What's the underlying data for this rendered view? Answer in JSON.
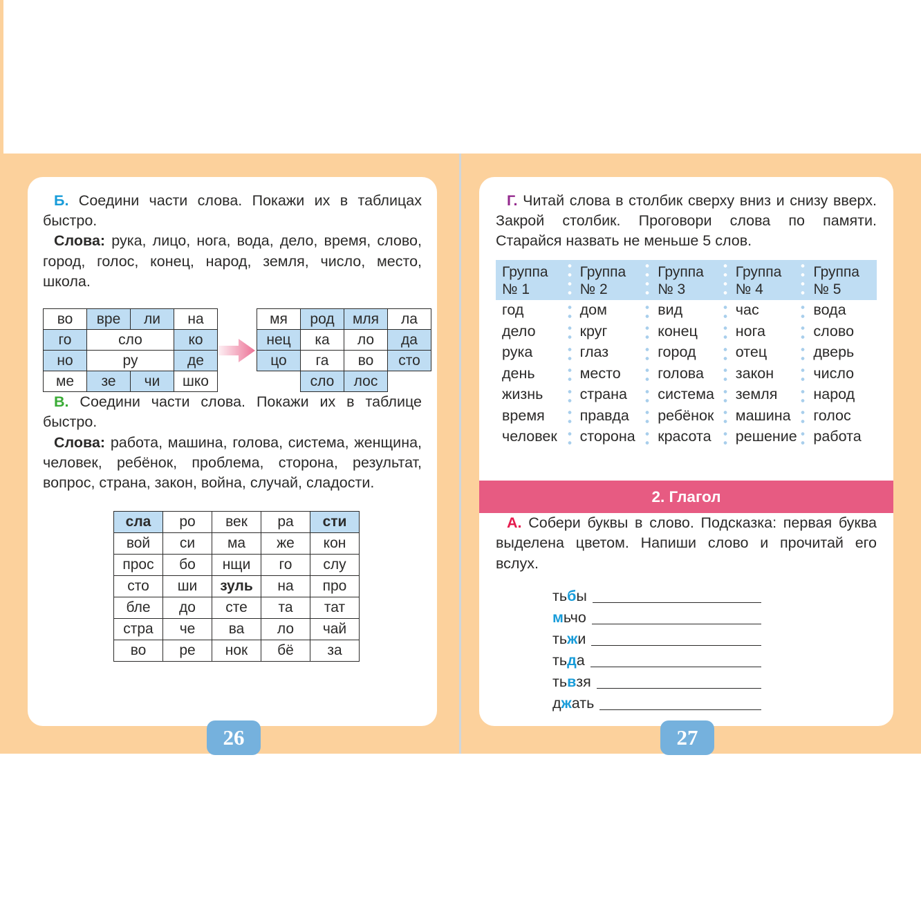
{
  "colors": {
    "background_band": "#fcd19c",
    "cell_blue": "#bfddf3",
    "banner": "#e75b82",
    "badge": "#75b1dd",
    "task_b_letter": "#189cd9",
    "task_v_letter": "#3aab36",
    "task_g_letter": "#942a8e",
    "task_a_letter": "#e51a4d",
    "blue_letter": "#189cd9",
    "text": "#2b2a29"
  },
  "left": {
    "task_b": {
      "letter": "Б.",
      "text": "Соедини части слова. Покажи их в таблицах быстро."
    },
    "words_b_label": "Слова:",
    "words_b": "рука, лицо, нога, вода, дело, время, слово, город, голос, конец, народ, земля, число, место, школа.",
    "table1": [
      [
        {
          "t": "во",
          "bg": "w"
        },
        {
          "t": "вре",
          "bg": "b"
        },
        {
          "t": "ли",
          "bg": "b"
        },
        {
          "t": "на",
          "bg": "w"
        }
      ],
      [
        {
          "t": "го",
          "bg": "b"
        },
        {
          "t": "сло",
          "bg": "w",
          "span": 2
        },
        {
          "t": "ко",
          "bg": "b"
        }
      ],
      [
        {
          "t": "но",
          "bg": "b"
        },
        {
          "t": "ру",
          "bg": "w",
          "span": 2
        },
        {
          "t": "де",
          "bg": "b"
        }
      ],
      [
        {
          "t": "ме",
          "bg": "w"
        },
        {
          "t": "зе",
          "bg": "b"
        },
        {
          "t": "чи",
          "bg": "b"
        },
        {
          "t": "шко",
          "bg": "w"
        }
      ]
    ],
    "table2": [
      [
        {
          "t": "мя",
          "bg": "w"
        },
        {
          "t": "род",
          "bg": "b"
        },
        {
          "t": "мля",
          "bg": "b"
        },
        {
          "t": "ла",
          "bg": "w"
        }
      ],
      [
        {
          "t": "нец",
          "bg": "b"
        },
        {
          "t": "ка",
          "bg": "w"
        },
        {
          "t": "ло",
          "bg": "w"
        },
        {
          "t": "да",
          "bg": "b"
        }
      ],
      [
        {
          "t": "цо",
          "bg": "b"
        },
        {
          "t": "га",
          "bg": "w"
        },
        {
          "t": "во",
          "bg": "w"
        },
        {
          "t": "сто",
          "bg": "b"
        }
      ],
      [
        {
          "t": "",
          "bg": "n"
        },
        {
          "t": "сло",
          "bg": "b"
        },
        {
          "t": "лос",
          "bg": "b"
        },
        {
          "t": "",
          "bg": "n"
        }
      ]
    ],
    "task_v": {
      "letter": "В.",
      "text": "Соедини части слова. Покажи их в таблице быстро."
    },
    "words_v_label": "Слова:",
    "words_v": "работа, машина, голова, система, женщина, человек, ребёнок, проблема, сторона, результат, вопрос, страна, закон, война, случай, сладости.",
    "table3": [
      [
        {
          "t": "сла",
          "bg": "b",
          "bold": true
        },
        {
          "t": "ро"
        },
        {
          "t": "век"
        },
        {
          "t": "ра"
        },
        {
          "t": "сти",
          "bg": "b",
          "bold": true
        }
      ],
      [
        {
          "t": "вой"
        },
        {
          "t": "си"
        },
        {
          "t": "ма"
        },
        {
          "t": "же"
        },
        {
          "t": "кон"
        }
      ],
      [
        {
          "t": "прос"
        },
        {
          "t": "бо"
        },
        {
          "t": "нщи"
        },
        {
          "t": "го"
        },
        {
          "t": "слу"
        }
      ],
      [
        {
          "t": "сто"
        },
        {
          "t": "ши"
        },
        {
          "t": "зуль",
          "bold": true
        },
        {
          "t": "на"
        },
        {
          "t": "про"
        }
      ],
      [
        {
          "t": "бле"
        },
        {
          "t": "до"
        },
        {
          "t": "сте"
        },
        {
          "t": "та"
        },
        {
          "t": "тат"
        }
      ],
      [
        {
          "t": "стра"
        },
        {
          "t": "че"
        },
        {
          "t": "ва"
        },
        {
          "t": "ло"
        },
        {
          "t": "чай"
        }
      ],
      [
        {
          "t": "во"
        },
        {
          "t": "ре"
        },
        {
          "t": "нок"
        },
        {
          "t": "бё"
        },
        {
          "t": "за"
        }
      ]
    ],
    "page_number": "26"
  },
  "right": {
    "task_g": {
      "letter": "Г.",
      "text": "Читай слова в столбик сверху вниз и снизу вверх. Закрой столбик. Проговори слова по памяти. Старайся назвать не меньше 5 слов."
    },
    "group_table": {
      "headers": [
        {
          "top": "Группа",
          "bottom": "№ 1"
        },
        {
          "top": "Группа",
          "bottom": "№ 2"
        },
        {
          "top": "Группа",
          "bottom": "№ 3"
        },
        {
          "top": "Группа",
          "bottom": "№ 4"
        },
        {
          "top": "Группа",
          "bottom": "№ 5"
        }
      ],
      "columns": [
        [
          "год",
          "дело",
          "рука",
          "день",
          "жизнь",
          "время",
          "человек"
        ],
        [
          "дом",
          "круг",
          "глаз",
          "место",
          "страна",
          "правда",
          "сторона"
        ],
        [
          "вид",
          "конец",
          "город",
          "голова",
          "система",
          "ребёнок",
          "красота"
        ],
        [
          "час",
          "нога",
          "отец",
          "закон",
          "земля",
          "машина",
          "решение"
        ],
        [
          "вода",
          "слово",
          "дверь",
          "число",
          "народ",
          "голос",
          "работа"
        ]
      ]
    },
    "section_banner": "2. Глагол",
    "task_a": {
      "letter": "А.",
      "text": "Собери буквы в слово. Подсказка: первая буква выделена цветом. Напиши слово и прочитай его вслух."
    },
    "assembly": [
      {
        "pre": "ть",
        "blue": "б",
        "post": "ы"
      },
      {
        "pre": "",
        "blue": "м",
        "post": "ьчо"
      },
      {
        "pre": "ть",
        "blue": "ж",
        "post": "и"
      },
      {
        "pre": "ть",
        "blue": "д",
        "post": "а"
      },
      {
        "pre": "ть",
        "blue": "в",
        "post": "зя"
      },
      {
        "pre": "д",
        "blue": "ж",
        "post": "ать"
      }
    ],
    "page_number": "27"
  }
}
